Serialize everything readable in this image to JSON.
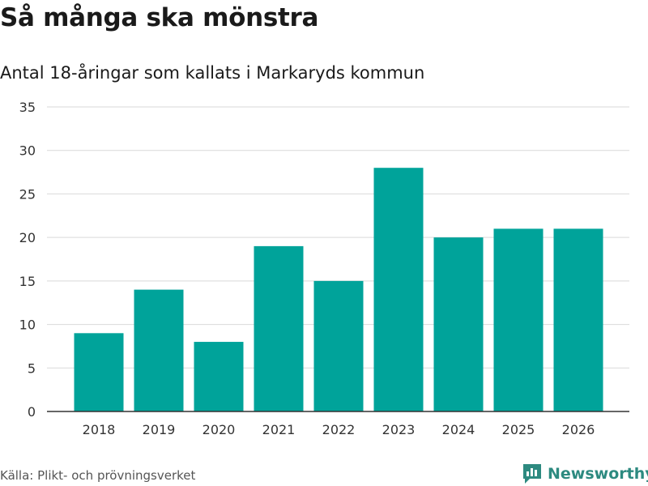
{
  "header": {
    "title": "Så många ska mönstra",
    "subtitle": "Antal 18-åringar som kallats i Markaryds kommun"
  },
  "footer": {
    "source": "Källa: Plikt- och prövningsverket",
    "brand": "Newsworthy"
  },
  "colors": {
    "bar": "#00a39a",
    "grid": "#d9d9d9",
    "axis": "#333333",
    "brand": "#2d8a80"
  },
  "chart_data": {
    "type": "bar",
    "title": "Så många ska mönstra",
    "subtitle": "Antal 18-åringar som kallats i Markaryds kommun",
    "categories": [
      "2018",
      "2019",
      "2020",
      "2021",
      "2022",
      "2023",
      "2024",
      "2025",
      "2026"
    ],
    "values": [
      9,
      14,
      8,
      19,
      15,
      28,
      20,
      21,
      21
    ],
    "xlabel": "",
    "ylabel": "",
    "ylim": [
      0,
      35
    ],
    "yticks": [
      0,
      5,
      10,
      15,
      20,
      25,
      30,
      35
    ],
    "grid": true,
    "legend": "none"
  }
}
